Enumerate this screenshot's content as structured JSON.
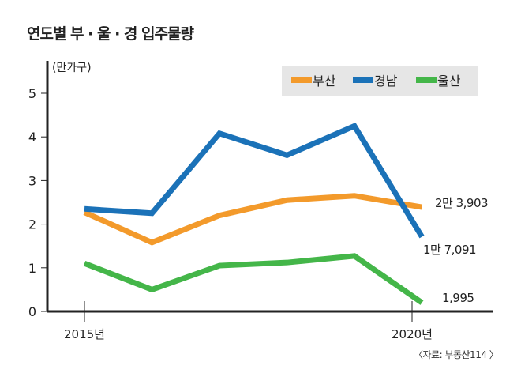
{
  "chart_data": {
    "type": "line",
    "title": "연도별 부 · 울 · 경 입주물량",
    "ylabel": "(만가구)",
    "x": [
      2015,
      2016,
      2017,
      2018,
      2019,
      2020
    ],
    "x_tick_labels": [
      {
        "x": 2015,
        "label": "2015년"
      },
      {
        "x": 2020,
        "label": "2020년"
      }
    ],
    "y_ticks": [
      "0",
      "1",
      "2",
      "3",
      "4",
      "5"
    ],
    "ylim": [
      0,
      5.5
    ],
    "grid": false,
    "legend_position": "top-right",
    "series": [
      {
        "name": "부산",
        "color": "#f39a2b",
        "values": [
          2.27,
          1.58,
          2.2,
          2.55,
          2.65,
          2.39
        ],
        "end_label": "2만 3,903"
      },
      {
        "name": "경남",
        "color": "#1b72b8",
        "values": [
          2.35,
          2.25,
          4.08,
          3.58,
          4.25,
          1.71
        ],
        "end_label": "1만 7,091"
      },
      {
        "name": "울산",
        "color": "#44b649",
        "values": [
          1.1,
          0.5,
          1.05,
          1.12,
          1.27,
          0.2
        ],
        "end_label": "1,995"
      }
    ],
    "source": "〈자료: 부동산114 〉"
  }
}
